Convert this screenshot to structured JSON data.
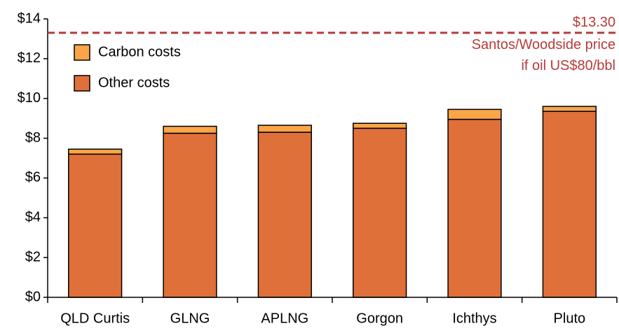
{
  "chart_data": {
    "type": "stacked_bar",
    "categories": [
      "QLD Curtis",
      "GLNG",
      "APLNG",
      "Gorgon",
      "Ichthys",
      "Pluto"
    ],
    "series": [
      {
        "name": "Carbon costs",
        "color": "#f9a548",
        "values": [
          0.25,
          0.35,
          0.35,
          0.25,
          0.5,
          0.25
        ]
      },
      {
        "name": "Other costs",
        "color": "#e0703a",
        "values": [
          7.2,
          8.25,
          8.3,
          8.5,
          8.95,
          9.35
        ]
      }
    ],
    "ylim": [
      0,
      14
    ],
    "yticks": [
      {
        "value": 0,
        "label": "$0"
      },
      {
        "value": 2,
        "label": "$2"
      },
      {
        "value": 4,
        "label": "$4"
      },
      {
        "value": 6,
        "label": "$6"
      },
      {
        "value": 8,
        "label": "$8"
      },
      {
        "value": 10,
        "label": "$10"
      },
      {
        "value": 12,
        "label": "$12"
      },
      {
        "value": 14,
        "label": "$14"
      }
    ],
    "grid": false,
    "legend": "top-left",
    "reference_line": {
      "value": 13.3,
      "label": "$13.30",
      "text": [
        "Santos/Woodside price",
        "if oil US$80/bbl"
      ],
      "color": "#b83a3a"
    }
  }
}
